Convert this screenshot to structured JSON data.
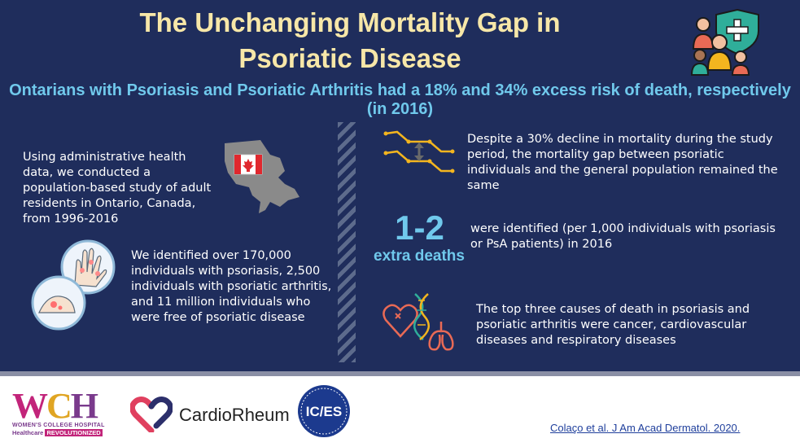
{
  "header": {
    "title_line1": "The Unchanging Mortality Gap in",
    "title_line2": "Psoriatic Disease",
    "subtitle": "Ontarians with Psoriasis and Psoriatic Arthritis had a 18% and 34% excess risk of death, respectively (in 2016)"
  },
  "left": {
    "study_text": "Using administrative health data, we conducted a population-based study of adult residents in Ontario, Canada, from 1996-2016",
    "identified_text": "We identified over 170,000 individuals with psoriasis, 2,500 individuals with psoriatic arthritis, and 11 million individuals who were free of psoriatic disease"
  },
  "right": {
    "decline_text": "Despite a 30% decline in mortality during the study period, the mortality gap between psoriatic individuals and the general population remained the same",
    "deaths_number": "1-2",
    "deaths_label": "extra deaths",
    "deaths_text": "were identified (per 1,000 individuals with psoriasis or PsA patients) in 2016",
    "causes_text": "The top three causes of death in psoriasis and psoriatic arthritis were cancer, cardiovascular diseases and respiratory diseases"
  },
  "icons": {
    "people": "people-shield-icon",
    "map": "ontario-map-icon",
    "hands": "hands-magnifier-icon",
    "gap": "mortality-gap-chart-icon",
    "organs": "heart-dna-lungs-icon"
  },
  "footer": {
    "wch_mark": {
      "w": "W",
      "c": "C",
      "h": "H"
    },
    "wch_name": "WOMEN'S COLLEGE HOSPITAL",
    "wch_tag_left": "Healthcare",
    "wch_tag_right": "REVOLUTIONIZED",
    "cardio_name": "CardioRheum",
    "ices_name": "IC/ES",
    "citation": "Colaço et al. J Am Acad Dermatol. 2020."
  },
  "colors": {
    "background": "#1f2d5c",
    "title": "#f7e7a8",
    "accent": "#70c9ec",
    "map_gray": "#8a8a8a",
    "chart_yellow": "#f3b51f"
  }
}
